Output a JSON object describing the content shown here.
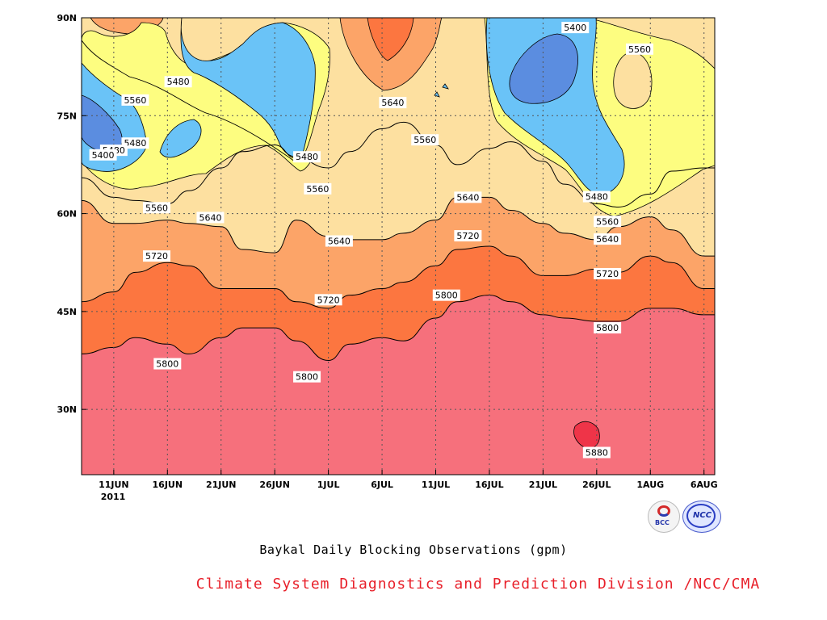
{
  "chart_data": {
    "type": "heatmap",
    "subtype": "filled-contour",
    "title": "Baykal Daily Blocking Observations (gpm)",
    "credit": "Climate System Diagnostics and Prediction Division /NCC/CMA",
    "x_ticks": [
      "11JUN",
      "16JUN",
      "21JUN",
      "26JUN",
      "1JUL",
      "6JUL",
      "11JUL",
      "16JUL",
      "21JUL",
      "26JUL",
      "1AUG",
      "6AUG"
    ],
    "x_year_label": "2011",
    "y_ticks": [
      "90N",
      "75N",
      "60N",
      "45N",
      "30N"
    ],
    "x_range": [
      "2011-06-08",
      "2011-08-06"
    ],
    "y_range_deg": [
      20,
      90
    ],
    "grid": true,
    "levels": [
      5400,
      5480,
      5560,
      5640,
      5720,
      5800,
      5880
    ],
    "level_colors": {
      "below_5400": "#5b8de0",
      "5400_5480": "#6ac3f7",
      "5480_5560": "#fdfd80",
      "5560_5640": "#fde0a0",
      "5640_5720": "#fca468",
      "5720_5800": "#fc7640",
      "5800_5880": "#f6707c",
      "above_5880": "#ef3448"
    },
    "contour_labels": [
      {
        "text": "5400",
        "date": "2011-07-24",
        "lat": 88.5
      },
      {
        "text": "5560",
        "date": "2011-07-30",
        "lat": 85.2
      },
      {
        "text": "5480",
        "date": "2011-06-17",
        "lat": 80.2
      },
      {
        "text": "5560",
        "date": "2011-06-13",
        "lat": 77.4
      },
      {
        "text": "5640",
        "date": "2011-07-07",
        "lat": 77.0
      },
      {
        "text": "5480",
        "date": "2011-06-13",
        "lat": 70.8
      },
      {
        "text": "5480",
        "date": "2011-06-11",
        "lat": 69.7
      },
      {
        "text": "5400",
        "date": "2011-06-10",
        "lat": 69.0
      },
      {
        "text": "5480",
        "date": "2011-06-29",
        "lat": 68.7
      },
      {
        "text": "5560",
        "date": "2011-07-10",
        "lat": 71.3
      },
      {
        "text": "5560",
        "date": "2011-06-30",
        "lat": 63.8
      },
      {
        "text": "5640",
        "date": "2011-07-14",
        "lat": 62.5
      },
      {
        "text": "5480",
        "date": "2011-07-26",
        "lat": 62.6
      },
      {
        "text": "5560",
        "date": "2011-06-15",
        "lat": 60.9
      },
      {
        "text": "5640",
        "date": "2011-06-20",
        "lat": 59.4
      },
      {
        "text": "5560",
        "date": "2011-07-27",
        "lat": 58.8
      },
      {
        "text": "5640",
        "date": "2011-07-02",
        "lat": 55.8
      },
      {
        "text": "5720",
        "date": "2011-07-14",
        "lat": 56.6
      },
      {
        "text": "5640",
        "date": "2011-07-27",
        "lat": 56.1
      },
      {
        "text": "5720",
        "date": "2011-06-15",
        "lat": 53.5
      },
      {
        "text": "5720",
        "date": "2011-07-27",
        "lat": 50.8
      },
      {
        "text": "5720",
        "date": "2011-07-01",
        "lat": 46.8
      },
      {
        "text": "5800",
        "date": "2011-07-12",
        "lat": 47.5
      },
      {
        "text": "5800",
        "date": "2011-07-27",
        "lat": 42.5
      },
      {
        "text": "5800",
        "date": "2011-06-16",
        "lat": 37.0
      },
      {
        "text": "5800",
        "date": "2011-06-29",
        "lat": 35.0
      },
      {
        "text": "5880",
        "date": "2011-07-26",
        "lat": 23.4
      }
    ],
    "bands": {
      "x": [
        "06-08",
        "06-11",
        "06-13",
        "06-16",
        "06-18",
        "06-21",
        "06-23",
        "06-26",
        "06-28",
        "07-01",
        "07-03",
        "07-06",
        "07-08",
        "07-11",
        "07-13",
        "07-16",
        "07-18",
        "07-21",
        "07-23",
        "07-26",
        "07-28",
        "07-31",
        "08-02",
        "08-05",
        "08-06"
      ],
      "b5800": [
        38.5,
        39.5,
        41.0,
        40.0,
        38.5,
        41.0,
        42.5,
        42.5,
        40.5,
        37.5,
        40.0,
        41.0,
        40.5,
        44.0,
        46.5,
        47.5,
        46.5,
        44.5,
        44.0,
        43.5,
        43.5,
        45.5,
        45.5,
        44.5,
        44.5
      ],
      "b5720": [
        46.5,
        48.0,
        51.0,
        52.5,
        52.0,
        48.5,
        48.5,
        48.5,
        46.5,
        45.5,
        47.5,
        48.5,
        49.5,
        52.0,
        54.5,
        55.0,
        53.5,
        50.5,
        50.5,
        51.5,
        51.0,
        53.5,
        52.5,
        48.5,
        48.5
      ],
      "b5640": [
        62.0,
        58.5,
        58.5,
        59.0,
        58.5,
        58.0,
        54.5,
        54.0,
        59.0,
        56.5,
        56.0,
        56.0,
        57.0,
        59.0,
        62.5,
        62.5,
        60.5,
        58.5,
        57.0,
        56.0,
        58.0,
        59.5,
        57.5,
        53.5,
        53.5
      ],
      "b5560": [
        65.5,
        62.5,
        62.0,
        61.5,
        63.5,
        67.0,
        69.5,
        70.5,
        68.5,
        67.0,
        69.5,
        73.0,
        74.0,
        70.5,
        67.5,
        70.0,
        71.0,
        68.0,
        64.5,
        61.5,
        61.0,
        63.0,
        66.5,
        67.0,
        67.0
      ]
    }
  }
}
